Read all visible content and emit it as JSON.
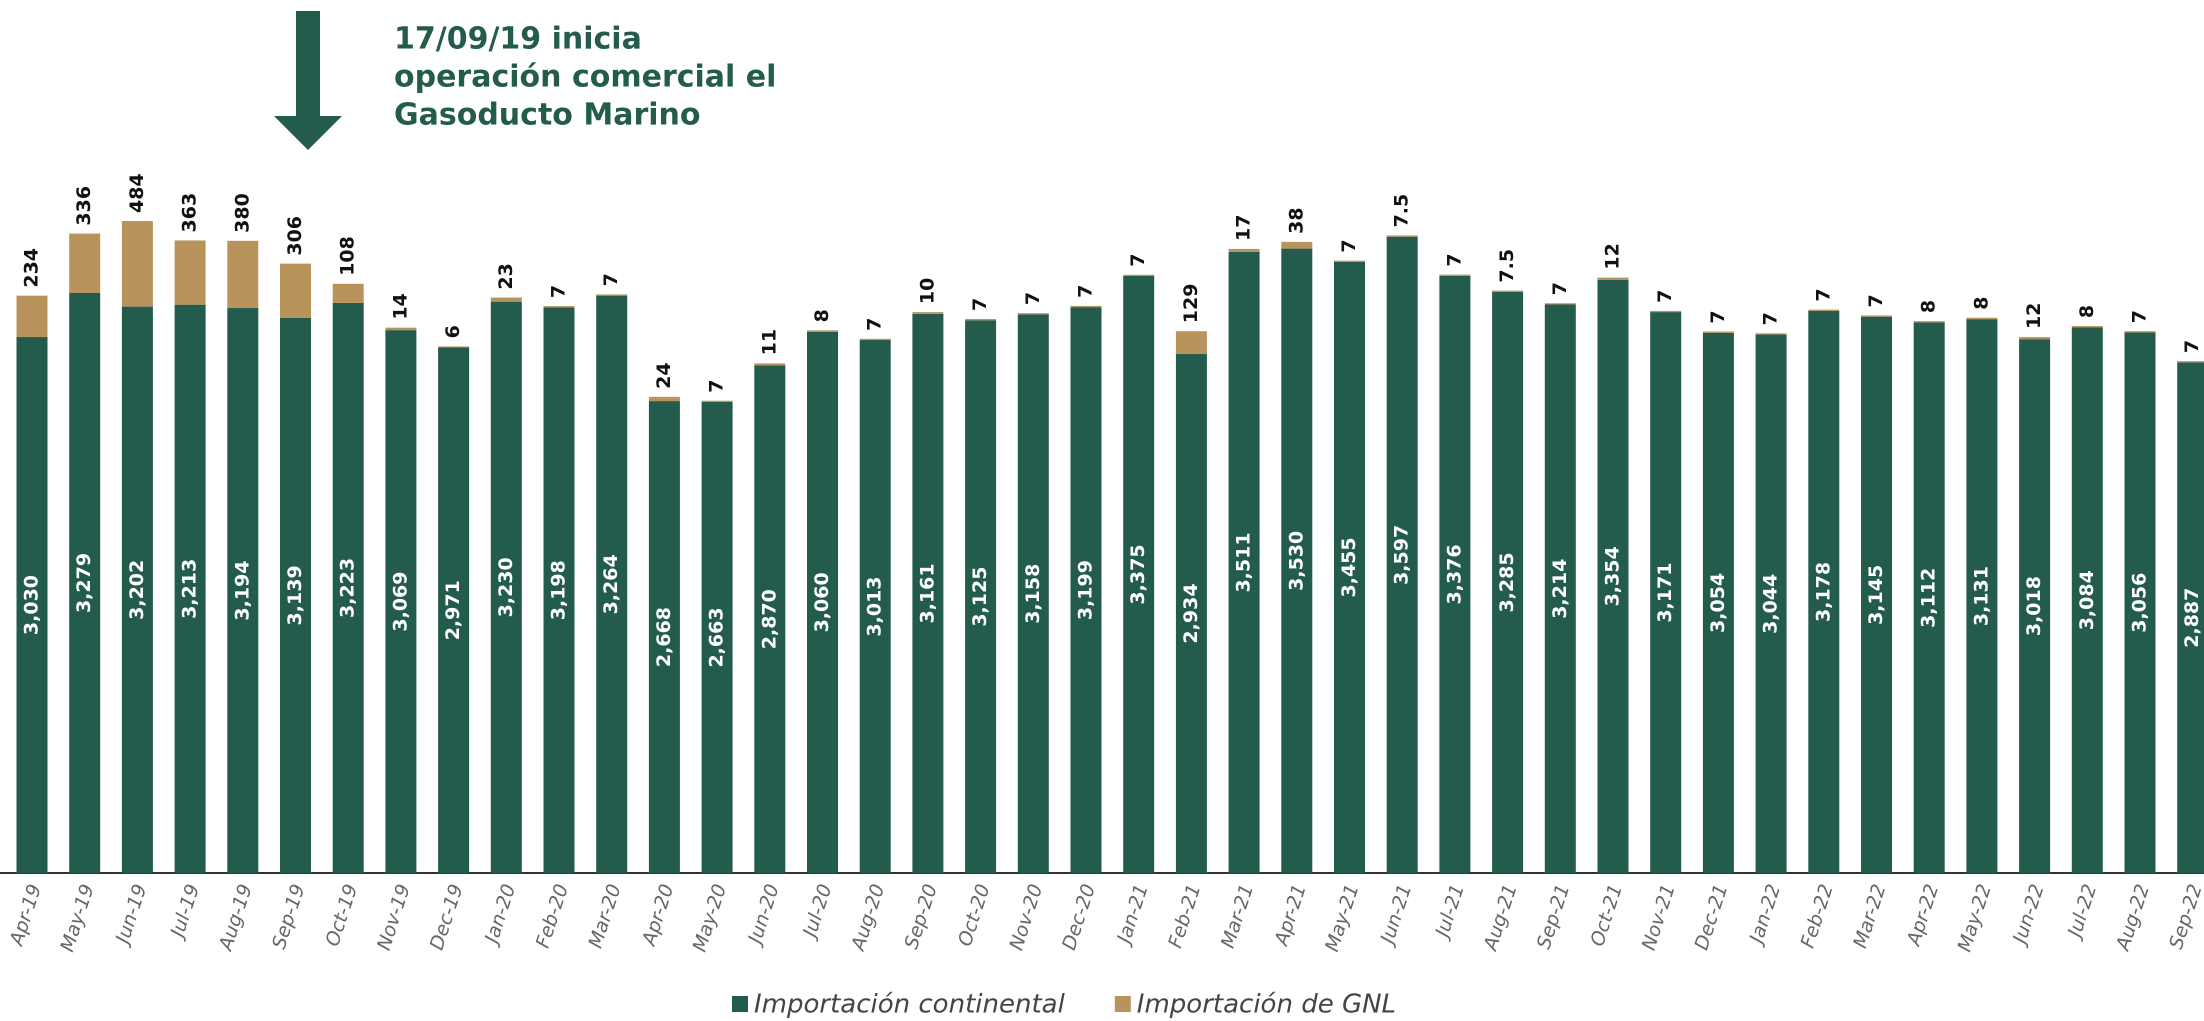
{
  "chart_data": {
    "type": "stacked_bar",
    "annotation": [
      "17/09/19 inicia",
      "operación comercial el",
      "Gasoducto Marino"
    ],
    "categories": [
      "Apr-19",
      "May-19",
      "Jun-19",
      "Jul-19",
      "Aug-19",
      "Sep-19",
      "Oct-19",
      "Nov-19",
      "Dec-19",
      "Jan-20",
      "Feb-20",
      "Mar-20",
      "Apr-20",
      "May-20",
      "Jun-20",
      "Jul-20",
      "Aug-20",
      "Sep-20",
      "Oct-20",
      "Nov-20",
      "Dec-20",
      "Jan-21",
      "Feb-21",
      "Mar-21",
      "Apr-21",
      "May-21",
      "Jun-21",
      "Jul-21",
      "Aug-21",
      "Sep-21",
      "Oct-21",
      "Nov-21",
      "Dec-21",
      "Jan-22",
      "Feb-22",
      "Mar-22",
      "Apr-22",
      "May-22",
      "Jun-22",
      "Jul-22",
      "Aug-22",
      "Sep-22"
    ],
    "series": [
      {
        "name": "Importación continental",
        "color": "#235c4d",
        "values": [
          3030,
          3279,
          3202,
          3213,
          3194,
          3139,
          3223,
          3069,
          2971,
          3230,
          3198,
          3264,
          2668,
          2663,
          2870,
          3060,
          3013,
          3161,
          3125,
          3158,
          3199,
          3375,
          2934,
          3511,
          3530,
          3455,
          3597,
          3376,
          3285,
          3214,
          3354,
          3171,
          3054,
          3044,
          3178,
          3145,
          3112,
          3131,
          3018,
          3084,
          3056,
          2887
        ],
        "value_labels": [
          "3,030",
          "3,279",
          "3,202",
          "3,213",
          "3,194",
          "3,139",
          "3,223",
          "3,069",
          "2,971",
          "3,230",
          "3,198",
          "3,264",
          "2,668",
          "2,663",
          "2,870",
          "3,060",
          "3,013",
          "3,161",
          "3,125",
          "3,158",
          "3,199",
          "3,375",
          "2,934",
          "3,511",
          "3,530",
          "3,455",
          "3,597",
          "3,376",
          "3,285",
          "3,214",
          "3,354",
          "3,171",
          "3,054",
          "3,044",
          "3,178",
          "3,145",
          "3,112",
          "3,131",
          "3,018",
          "3,084",
          "3,056",
          "2,887"
        ]
      },
      {
        "name": "Importación de GNL",
        "color": "#b8945c",
        "values": [
          234,
          336,
          484,
          363,
          380,
          306,
          108,
          14,
          6,
          23,
          7,
          7,
          24,
          7,
          11,
          8,
          7,
          10,
          7,
          7,
          7,
          7,
          129,
          17,
          38,
          7,
          7.5,
          7,
          7.5,
          7,
          12,
          7,
          7,
          7,
          7,
          7,
          8,
          8,
          12,
          8,
          7,
          7
        ]
      }
    ]
  }
}
